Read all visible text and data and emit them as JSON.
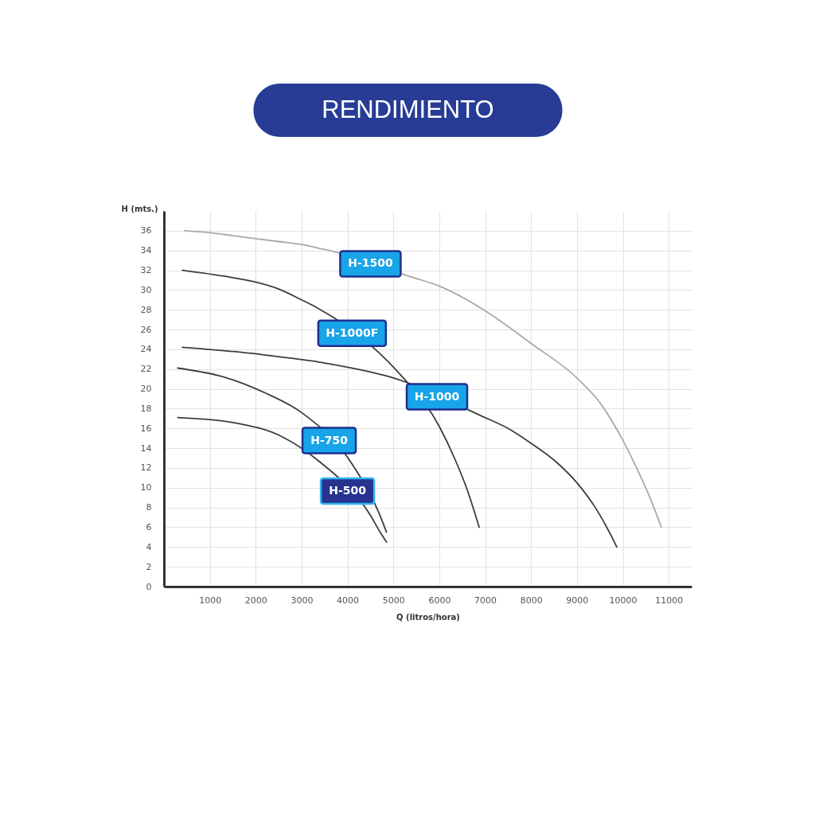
{
  "chart_data": {
    "type": "line",
    "title": "RENDIMIENTO",
    "xlabel": "Q (litros/hora)",
    "ylabel": "H (mts.)",
    "xlim": [
      0,
      11500
    ],
    "ylim": [
      0,
      38
    ],
    "xticks": [
      1000,
      2000,
      3000,
      4000,
      5000,
      6000,
      7000,
      8000,
      9000,
      10000,
      11000
    ],
    "yticks": [
      0,
      2,
      4,
      6,
      8,
      10,
      12,
      14,
      16,
      18,
      20,
      22,
      24,
      26,
      28,
      30,
      32,
      34,
      36
    ],
    "grid": true,
    "legend": false,
    "marker": "none",
    "line_style": "solid",
    "series": [
      {
        "name": "H-1500",
        "color": "#a9a9a9",
        "x": [
          450,
          1000,
          1500,
          2000,
          2500,
          3000,
          3500,
          3600,
          4500,
          5400,
          6000,
          7000,
          8000,
          9000,
          9500,
          10000,
          10300,
          10600,
          10840
        ],
        "values": [
          36.0,
          35.8,
          35.5,
          35.2,
          34.9,
          34.6,
          34.1,
          34.0,
          null,
          31.3,
          30.4,
          27.9,
          24.6,
          21.1,
          18.6,
          14.8,
          12.0,
          8.9,
          6.0
        ]
      },
      {
        "name": "H-1000F",
        "color": "#3d3d3d",
        "x": [
          400,
          1300,
          2000,
          2500,
          3000,
          3300,
          4100,
          4700,
          5100,
          6000,
          6350,
          6600,
          6870
        ],
        "values": [
          32.0,
          31.4,
          30.8,
          30.1,
          29.0,
          28.3,
          null,
          23.6,
          21.7,
          16.2,
          12.8,
          9.9,
          6.0
        ]
      },
      {
        "name": "H-1000",
        "color": "#3d3d3d",
        "x": [
          400,
          1900,
          2600,
          3400,
          4200,
          5000,
          5950,
          6900,
          7500,
          8000,
          8500,
          9000,
          9400,
          9650,
          9870
        ],
        "values": [
          24.2,
          23.6,
          23.2,
          22.7,
          22.0,
          21.1,
          null,
          17.3,
          16.0,
          14.5,
          12.8,
          10.5,
          8.0,
          6.0,
          4.0
        ]
      },
      {
        "name": "H-750",
        "color": "#3d3d3d",
        "x": [
          300,
          1300,
          2200,
          3000,
          3600,
          4100,
          4700,
          4850
        ],
        "values": [
          22.1,
          21.2,
          19.6,
          17.6,
          null,
          12.4,
          7.3,
          5.5
        ]
      },
      {
        "name": "H-500",
        "color": "#3d3d3d",
        "x": [
          300,
          1500,
          2600,
          3400,
          4000,
          4500,
          4700,
          4850
        ],
        "values": [
          17.1,
          16.6,
          15.1,
          12.6,
          null,
          7.2,
          5.6,
          4.5
        ]
      }
    ]
  }
}
